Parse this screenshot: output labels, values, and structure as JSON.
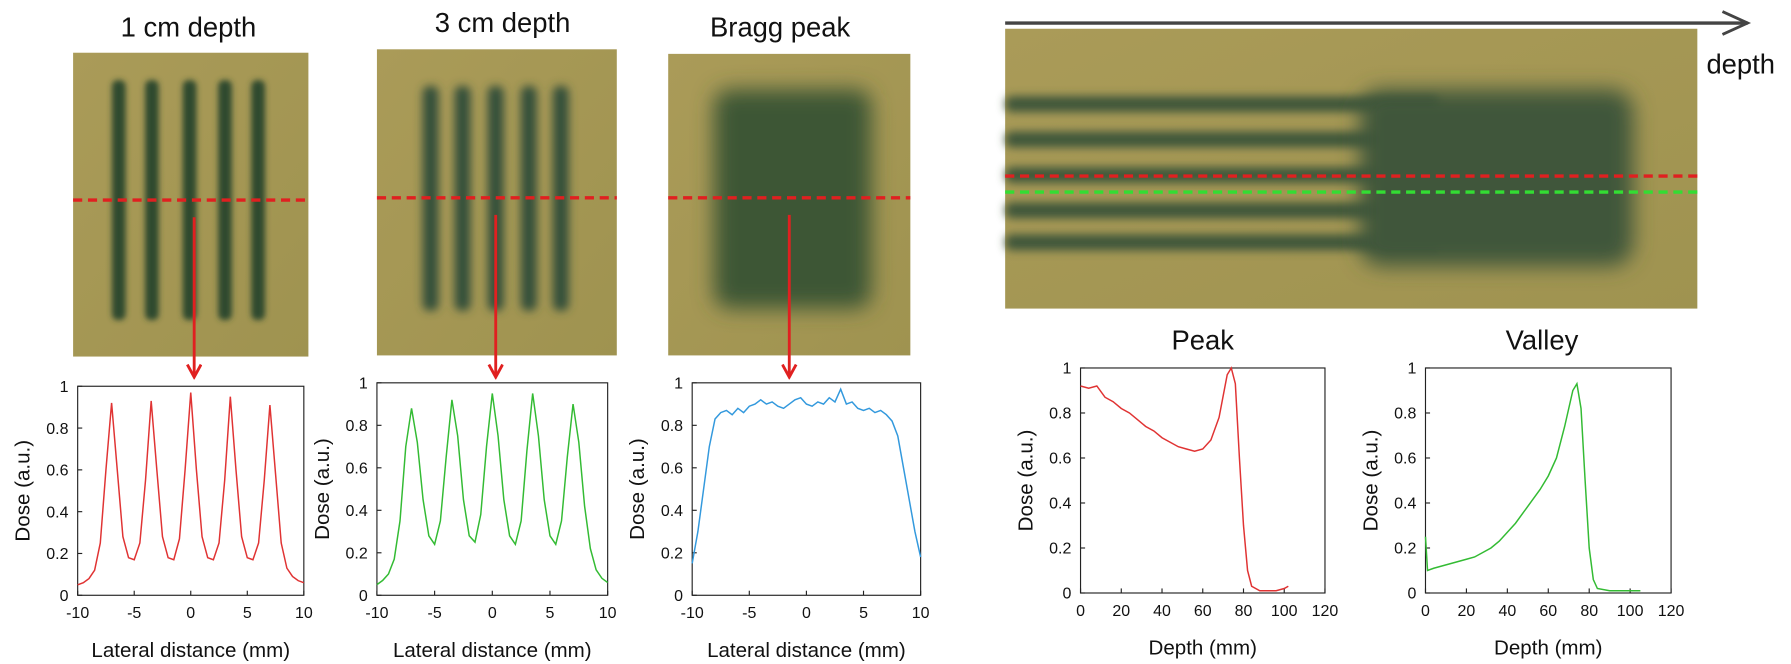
{
  "figure": {
    "arrow_label": "depth"
  },
  "chart_data": [
    {
      "type": "line",
      "title": "1 cm depth",
      "xlabel": "Lateral distance (mm)",
      "ylabel": "Dose (a.u.)",
      "x": [
        -10,
        -9.5,
        -9,
        -8.5,
        -8,
        -7.5,
        -7,
        -6.5,
        -6,
        -5.5,
        -5,
        -4.5,
        -4,
        -3.5,
        -3,
        -2.5,
        -2,
        -1.5,
        -1,
        -0.5,
        0,
        0.5,
        1,
        1.5,
        2,
        2.5,
        3,
        3.5,
        4,
        4.5,
        5,
        5.5,
        6,
        6.5,
        7,
        7.5,
        8,
        8.5,
        9,
        9.5,
        10
      ],
      "series": [
        {
          "color": "#e03333",
          "values": [
            0.05,
            0.06,
            0.08,
            0.12,
            0.25,
            0.6,
            0.92,
            0.6,
            0.28,
            0.18,
            0.17,
            0.25,
            0.55,
            0.93,
            0.6,
            0.28,
            0.18,
            0.17,
            0.27,
            0.6,
            0.97,
            0.6,
            0.28,
            0.18,
            0.17,
            0.25,
            0.55,
            0.95,
            0.6,
            0.28,
            0.18,
            0.17,
            0.25,
            0.55,
            0.91,
            0.58,
            0.25,
            0.13,
            0.09,
            0.07,
            0.06
          ]
        }
      ],
      "xlim": [
        -10,
        10
      ],
      "xticks": [
        -10,
        -5,
        0,
        5,
        10
      ],
      "ylim": [
        0,
        1
      ],
      "yticks": [
        0,
        0.2,
        0.4,
        0.6,
        0.8,
        1
      ]
    },
    {
      "type": "line",
      "title": "3 cm depth",
      "xlabel": "Lateral distance (mm)",
      "ylabel": "Dose (a.u.)",
      "x": [
        -10,
        -9.5,
        -9,
        -8.5,
        -8,
        -7.5,
        -7,
        -6.5,
        -6,
        -5.5,
        -5,
        -4.5,
        -4,
        -3.5,
        -3,
        -2.5,
        -2,
        -1.5,
        -1,
        -0.5,
        0,
        0.5,
        1,
        1.5,
        2,
        2.5,
        3,
        3.5,
        4,
        4.5,
        5,
        5.5,
        6,
        6.5,
        7,
        7.5,
        8,
        8.5,
        9,
        9.5,
        10
      ],
      "series": [
        {
          "color": "#33bb33",
          "values": [
            0.05,
            0.07,
            0.1,
            0.17,
            0.35,
            0.7,
            0.88,
            0.72,
            0.45,
            0.28,
            0.24,
            0.35,
            0.65,
            0.92,
            0.75,
            0.45,
            0.28,
            0.25,
            0.38,
            0.7,
            0.95,
            0.75,
            0.45,
            0.28,
            0.24,
            0.35,
            0.68,
            0.95,
            0.75,
            0.45,
            0.28,
            0.24,
            0.35,
            0.65,
            0.9,
            0.72,
            0.42,
            0.22,
            0.12,
            0.08,
            0.06
          ]
        }
      ],
      "xlim": [
        -10,
        10
      ],
      "xticks": [
        -10,
        -5,
        0,
        5,
        10
      ],
      "ylim": [
        0,
        1
      ],
      "yticks": [
        0,
        0.2,
        0.4,
        0.6,
        0.8,
        1
      ]
    },
    {
      "type": "line",
      "title": "Bragg peak",
      "xlabel": "Lateral distance (mm)",
      "ylabel": "Dose (a.u.)",
      "x": [
        -10,
        -9.5,
        -9,
        -8.5,
        -8,
        -7.5,
        -7,
        -6.5,
        -6,
        -5.5,
        -5,
        -4.5,
        -4,
        -3.5,
        -3,
        -2.5,
        -2,
        -1.5,
        -1,
        -0.5,
        0,
        0.5,
        1,
        1.5,
        2,
        2.5,
        3,
        3.5,
        4,
        4.5,
        5,
        5.5,
        6,
        6.5,
        7,
        7.5,
        8,
        8.5,
        9,
        9.5,
        10
      ],
      "series": [
        {
          "color": "#3399dd",
          "values": [
            0.15,
            0.3,
            0.5,
            0.7,
            0.83,
            0.86,
            0.87,
            0.85,
            0.88,
            0.86,
            0.89,
            0.9,
            0.92,
            0.9,
            0.91,
            0.89,
            0.88,
            0.9,
            0.92,
            0.93,
            0.9,
            0.89,
            0.91,
            0.9,
            0.93,
            0.91,
            0.97,
            0.9,
            0.91,
            0.88,
            0.87,
            0.88,
            0.86,
            0.87,
            0.85,
            0.82,
            0.75,
            0.6,
            0.45,
            0.3,
            0.18
          ]
        }
      ],
      "xlim": [
        -10,
        10
      ],
      "xticks": [
        -10,
        -5,
        0,
        5,
        10
      ],
      "ylim": [
        0,
        1
      ],
      "yticks": [
        0,
        0.2,
        0.4,
        0.6,
        0.8,
        1
      ]
    },
    {
      "type": "line",
      "title": "Peak",
      "xlabel": "Depth (mm)",
      "ylabel": "Dose (a.u.)",
      "x": [
        0,
        4,
        8,
        12,
        16,
        20,
        24,
        28,
        32,
        36,
        40,
        44,
        48,
        52,
        56,
        60,
        64,
        68,
        72,
        74,
        76,
        78,
        80,
        82,
        84,
        88,
        92,
        96,
        100,
        102
      ],
      "series": [
        {
          "color": "#e03333",
          "values": [
            0.92,
            0.91,
            0.92,
            0.87,
            0.85,
            0.82,
            0.8,
            0.77,
            0.74,
            0.72,
            0.69,
            0.67,
            0.65,
            0.64,
            0.63,
            0.64,
            0.68,
            0.78,
            0.97,
            1.0,
            0.93,
            0.6,
            0.3,
            0.1,
            0.03,
            0.01,
            0.01,
            0.01,
            0.02,
            0.03
          ]
        }
      ],
      "xlim": [
        0,
        120
      ],
      "xticks": [
        0,
        20,
        40,
        60,
        80,
        100,
        120
      ],
      "ylim": [
        0,
        1
      ],
      "yticks": [
        0,
        0.2,
        0.4,
        0.6,
        0.8,
        1
      ]
    },
    {
      "type": "line",
      "title": "Valley",
      "xlabel": "Depth (mm)",
      "ylabel": "Dose (a.u.)",
      "x": [
        0,
        1,
        4,
        8,
        12,
        16,
        20,
        24,
        28,
        32,
        36,
        40,
        44,
        48,
        52,
        56,
        60,
        64,
        68,
        72,
        74,
        76,
        78,
        80,
        82,
        84,
        90,
        96,
        100,
        105
      ],
      "series": [
        {
          "color": "#33bb33",
          "values": [
            0.25,
            0.1,
            0.11,
            0.12,
            0.13,
            0.14,
            0.15,
            0.16,
            0.18,
            0.2,
            0.23,
            0.27,
            0.31,
            0.36,
            0.41,
            0.46,
            0.52,
            0.6,
            0.74,
            0.9,
            0.93,
            0.82,
            0.5,
            0.2,
            0.06,
            0.02,
            0.01,
            0.01,
            0.01,
            0.01
          ]
        }
      ],
      "xlim": [
        0,
        120
      ],
      "xticks": [
        0,
        20,
        40,
        60,
        80,
        100,
        120
      ],
      "ylim": [
        0,
        1
      ],
      "yticks": [
        0,
        0.2,
        0.4,
        0.6,
        0.8,
        1
      ]
    }
  ]
}
